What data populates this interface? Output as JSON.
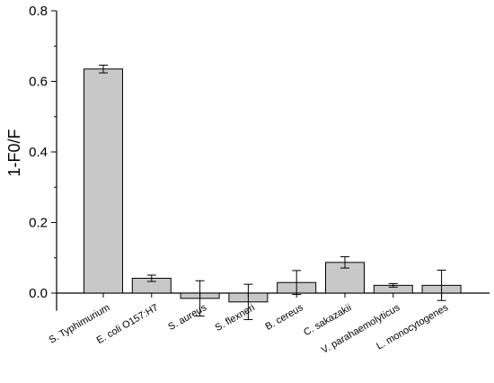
{
  "chart_data": {
    "type": "bar",
    "xlabel": "",
    "ylabel": "1-F0/F",
    "ylim": [
      -0.05,
      0.8
    ],
    "yticks": [
      0.0,
      0.2,
      0.4,
      0.6,
      0.8
    ],
    "ytick_labels": [
      "0.0",
      "0.2",
      "0.4",
      "0.6",
      "0.8"
    ],
    "grid": false,
    "colors": {
      "bar_fill": "#c8c8c8",
      "bar_edge": "#000000"
    },
    "categories": [
      "S. Typhimurium",
      "E. coli O157:H7",
      "S. aureus",
      "S. flexneri",
      "B. cereus",
      "C. sakazakii",
      "V. parahaemolyticus",
      "L. monocytogenes"
    ],
    "values": [
      0.635,
      0.042,
      -0.015,
      -0.025,
      0.03,
      0.087,
      0.022,
      0.022
    ],
    "errors": [
      0.011,
      0.009,
      0.05,
      0.05,
      0.034,
      0.016,
      0.005,
      0.043
    ]
  }
}
